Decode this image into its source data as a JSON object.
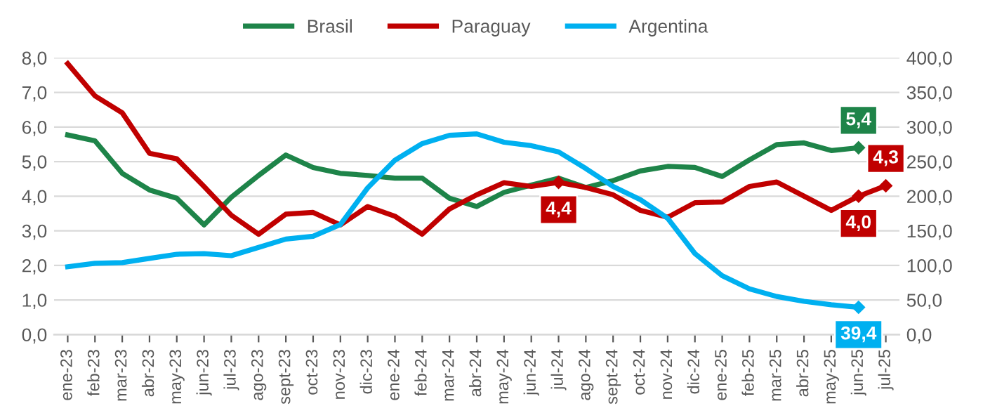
{
  "chart_data": {
    "type": "line",
    "categories": [
      "ene-23",
      "feb-23",
      "mar-23",
      "abr-23",
      "may-23",
      "jun-23",
      "jul-23",
      "ago-23",
      "sept-23",
      "oct-23",
      "nov-23",
      "dic-23",
      "ene-24",
      "feb-24",
      "mar-24",
      "abr-24",
      "may-24",
      "jun-24",
      "jul-24",
      "ago-24",
      "sept-24",
      "oct-24",
      "nov-24",
      "dic-24",
      "ene-25",
      "feb-25",
      "mar-25",
      "abr-25",
      "may-25",
      "jun-25",
      "jul-25"
    ],
    "series": [
      {
        "name": "Brasil",
        "color": "#1e8449",
        "values": [
          5.77,
          5.6,
          4.66,
          4.18,
          3.94,
          3.17,
          3.97,
          4.6,
          5.19,
          4.83,
          4.66,
          4.6,
          4.52,
          4.52,
          3.94,
          3.7,
          4.11,
          4.32,
          4.52,
          4.25,
          4.45,
          4.73,
          4.86,
          4.83,
          4.57,
          5.05,
          5.49,
          5.54,
          5.32,
          5.4,
          null
        ],
        "value_labels": [
          null,
          null,
          null,
          null,
          null,
          null,
          null,
          null,
          null,
          null,
          null,
          null,
          null,
          null,
          null,
          null,
          null,
          null,
          null,
          null,
          null,
          null,
          null,
          null,
          null,
          null,
          null,
          null,
          null,
          "5,4",
          null
        ]
      },
      {
        "name": "Paraguay",
        "color": "#c00000",
        "values": [
          7.83,
          6.9,
          6.41,
          5.24,
          5.08,
          4.28,
          3.45,
          2.9,
          3.48,
          3.53,
          3.17,
          3.7,
          3.42,
          2.9,
          3.63,
          4.04,
          4.39,
          4.28,
          4.4,
          4.25,
          4.04,
          3.59,
          3.39,
          3.81,
          3.83,
          4.28,
          4.41,
          4.0,
          3.59,
          4.0,
          4.3
        ],
        "value_labels": [
          null,
          null,
          null,
          null,
          null,
          null,
          null,
          null,
          null,
          null,
          null,
          null,
          null,
          null,
          null,
          null,
          null,
          null,
          "4,4",
          null,
          null,
          null,
          null,
          null,
          null,
          null,
          null,
          null,
          null,
          "4,0",
          "4,3"
        ]
      },
      {
        "name": "Argentina",
        "color": "#00b0f0",
        "axis": "y2",
        "values": [
          98,
          103,
          104,
          110,
          116,
          117,
          114,
          126,
          138,
          142,
          159,
          212,
          252,
          276,
          288,
          290,
          278,
          273,
          264,
          240,
          214,
          195,
          168,
          117,
          85,
          66,
          55,
          48,
          43,
          39.4,
          null
        ],
        "value_labels": [
          null,
          null,
          null,
          null,
          null,
          null,
          null,
          null,
          null,
          null,
          null,
          null,
          null,
          null,
          null,
          null,
          null,
          null,
          null,
          null,
          null,
          null,
          null,
          null,
          null,
          null,
          null,
          null,
          null,
          "39,4",
          null
        ]
      }
    ],
    "ylim": [
      0,
      8
    ],
    "yticks": [
      {
        "value": 0,
        "label": "0,0"
      },
      {
        "value": 1,
        "label": "1,0"
      },
      {
        "value": 2,
        "label": "2,0"
      },
      {
        "value": 3,
        "label": "3,0"
      },
      {
        "value": 4,
        "label": "4,0"
      },
      {
        "value": 5,
        "label": "5,0"
      },
      {
        "value": 6,
        "label": "6,0"
      },
      {
        "value": 7,
        "label": "7,0"
      },
      {
        "value": 8,
        "label": "8,0"
      }
    ],
    "y2lim": [
      0,
      400
    ],
    "y2ticks": [
      {
        "value": 0,
        "label": "0,0"
      },
      {
        "value": 50,
        "label": "50,0"
      },
      {
        "value": 100,
        "label": "100,0"
      },
      {
        "value": 150,
        "label": "150,0"
      },
      {
        "value": 200,
        "label": "200,0"
      },
      {
        "value": 250,
        "label": "250,0"
      },
      {
        "value": 300,
        "label": "300,0"
      },
      {
        "value": 350,
        "label": "350,0"
      },
      {
        "value": 400,
        "label": "400,0"
      }
    ],
    "grid": "y",
    "legend": "top",
    "line_style": "solid"
  }
}
